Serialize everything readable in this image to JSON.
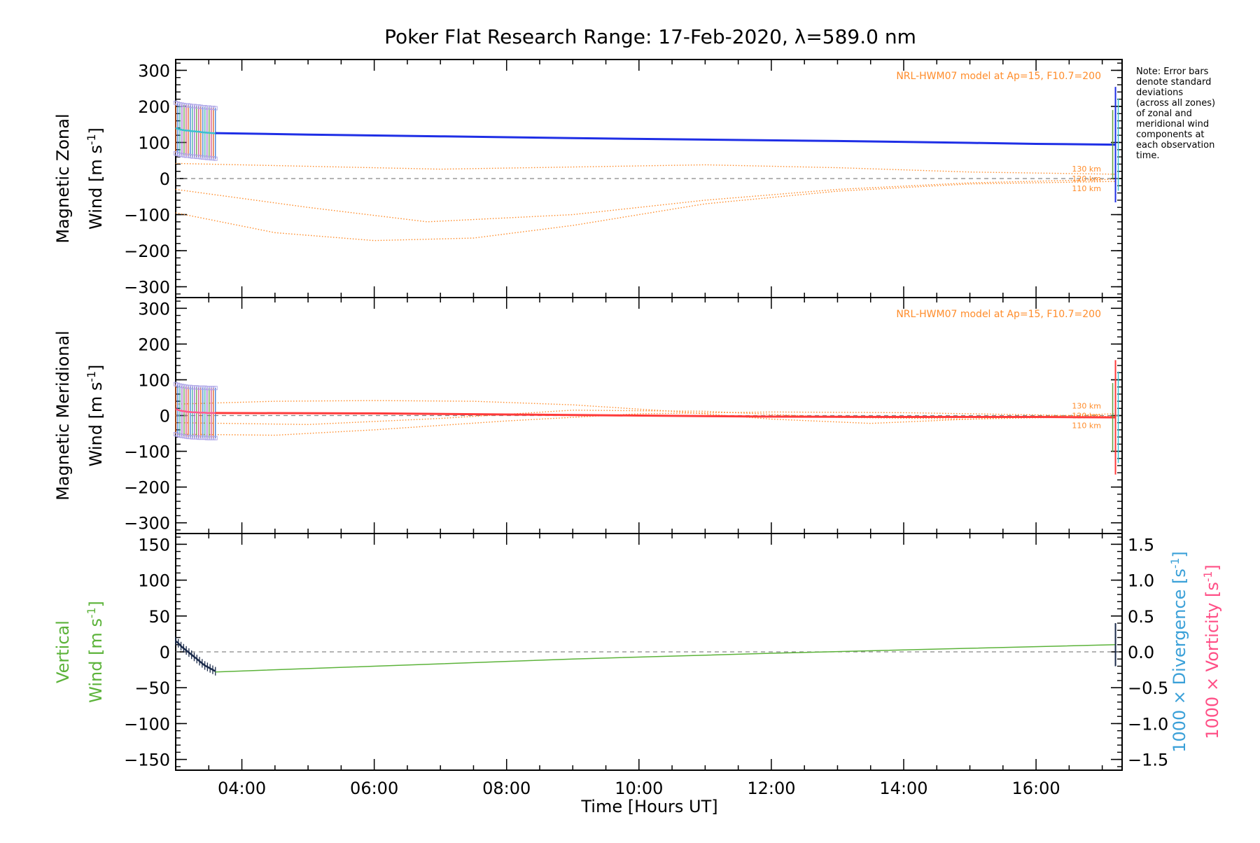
{
  "title": "Poker Flat Research Range: 17-Feb-2020, λ=589.0 nm",
  "note_lines": [
    "Note: Error bars",
    "denote standard",
    "deviations",
    "(across all zones)",
    "of zonal and",
    "meridional wind",
    "components at",
    "each observation",
    "time."
  ],
  "colors": {
    "zonal": "#1f2fe6",
    "meridional": "#ff3b3b",
    "vertical": "#5cb33a",
    "model": "#ff8c2a",
    "divergence": "#3aa0d8",
    "vorticity": "#ff4f86"
  },
  "chart_data": [
    {
      "type": "line",
      "ylabel_line1": "Magnetic Zonal",
      "ylabel_line2_prefix": "Wind [m s",
      "ylabel_sup": "-1",
      "ylabel_suffix": "]",
      "model_label": "NRL-HWM07 model at Ap=15, F10.7=200",
      "ylim": [
        -330,
        330
      ],
      "yticks": [
        -300,
        -200,
        -100,
        0,
        100,
        200,
        300
      ],
      "ytick_labels": [
        "−300",
        "−200",
        "−100",
        "0",
        "100",
        "200",
        "300"
      ],
      "xlim": [
        3.0,
        17.3
      ],
      "series": [
        {
          "kind": "obs",
          "x": [
            3.6,
            5.0,
            7.0,
            9.0,
            11.0,
            13.0,
            15.0,
            16.0,
            17.2
          ],
          "y": [
            126,
            122,
            117,
            112,
            108,
            104,
            99,
            96,
            94
          ]
        }
      ],
      "early_values": [
        140,
        138,
        136,
        135,
        134,
        133,
        133,
        132,
        131,
        131,
        130,
        130,
        129,
        128,
        128,
        127,
        127,
        126,
        126,
        125
      ],
      "model_curves": [
        {
          "name": "130 km",
          "x": [
            3.0,
            5.0,
            7.0,
            9.0,
            11.0,
            13.0,
            15.0,
            17.2
          ],
          "y": [
            42,
            34,
            26,
            32,
            38,
            30,
            18,
            12
          ]
        },
        {
          "name": "120 km",
          "x": [
            3.0,
            5.0,
            6.8,
            9.0,
            11.0,
            13.0,
            15.0,
            17.2
          ],
          "y": [
            -30,
            -80,
            -120,
            -100,
            -60,
            -30,
            -12,
            -2
          ]
        },
        {
          "name": "110 km",
          "x": [
            3.0,
            4.5,
            6.0,
            7.5,
            9.0,
            11.0,
            13.0,
            15.0,
            17.2
          ],
          "y": [
            -95,
            -150,
            -172,
            -165,
            -130,
            -70,
            -35,
            -15,
            -8
          ]
        }
      ]
    },
    {
      "type": "line",
      "ylabel_line1": "Magnetic Meridional",
      "ylabel_line2_prefix": "Wind [m s",
      "ylabel_sup": "-1",
      "ylabel_suffix": "]",
      "model_label": "NRL-HWM07 model at Ap=15, F10.7=200",
      "ylim": [
        -330,
        330
      ],
      "yticks": [
        -300,
        -200,
        -100,
        0,
        100,
        200,
        300
      ],
      "ytick_labels": [
        "−300",
        "−200",
        "−100",
        "0",
        "100",
        "200",
        "300"
      ],
      "xlim": [
        3.0,
        17.3
      ],
      "series": [
        {
          "kind": "obs",
          "x": [
            3.6,
            6.0,
            8.0,
            10.0,
            12.0,
            14.0,
            16.0,
            17.2
          ],
          "y": [
            7,
            6,
            3,
            0,
            -3,
            -4,
            -4,
            -5
          ]
        }
      ],
      "early_values": [
        18,
        16,
        14,
        13,
        12,
        11,
        10,
        10,
        9,
        9,
        9,
        8,
        8,
        8,
        8,
        7,
        7,
        7,
        7,
        7
      ],
      "model_curves": [
        {
          "name": "130 km",
          "x": [
            3.0,
            4.5,
            6.0,
            7.5,
            9.0,
            10.5,
            12.0,
            13.5,
            15.0,
            17.2
          ],
          "y": [
            32,
            40,
            42,
            40,
            30,
            12,
            -10,
            -22,
            -10,
            5
          ]
        },
        {
          "name": "120 km",
          "x": [
            3.0,
            5.0,
            7.0,
            9.0,
            11.0,
            13.0,
            15.0,
            17.2
          ],
          "y": [
            -20,
            -25,
            -8,
            15,
            12,
            -5,
            -10,
            -2
          ]
        },
        {
          "name": "110 km",
          "x": [
            3.0,
            4.5,
            6.0,
            8.0,
            10.0,
            12.0,
            14.0,
            16.0,
            17.2
          ],
          "y": [
            -52,
            -55,
            -40,
            -15,
            5,
            10,
            8,
            2,
            -3
          ]
        }
      ]
    },
    {
      "type": "line",
      "ylabel_line1": "Vertical",
      "ylabel_line2_prefix": "Wind [m s",
      "ylabel_sup": "-1",
      "ylabel_suffix": "]",
      "ylim": [
        -165,
        165
      ],
      "yticks": [
        -150,
        -100,
        -50,
        0,
        50,
        100,
        150
      ],
      "ytick_labels": [
        "−150",
        "−100",
        "−50",
        "0",
        "50",
        "100",
        "150"
      ],
      "right_axis": {
        "ylim": [
          -1.65,
          1.65
        ],
        "yticks": [
          -1.5,
          -1.0,
          -0.5,
          0.0,
          0.5,
          1.0,
          1.5
        ],
        "ytick_labels": [
          "−1.5",
          "−1.0",
          "−0.5",
          "0.0",
          "0.5",
          "1.0",
          "1.5"
        ],
        "label_divergence": "1000 × Divergence [s",
        "label_vorticity": "1000 × Vorticity [s",
        "sup": "-1",
        "suffix": "]"
      },
      "xlim": [
        3.0,
        17.3
      ],
      "series": [
        {
          "kind": "obs",
          "x": [
            3.6,
            6.0,
            9.0,
            12.0,
            15.0,
            17.2
          ],
          "y": [
            -28,
            -20,
            -10,
            -2,
            5,
            10
          ]
        }
      ],
      "early_values": [
        15,
        12,
        8,
        5,
        2,
        -1,
        -4,
        -7,
        -10,
        -13,
        -16,
        -19,
        -21,
        -23,
        -25,
        -27
      ]
    }
  ],
  "xaxis": {
    "label": "Time [Hours UT]",
    "ticks": [
      4,
      6,
      8,
      10,
      12,
      14,
      16
    ],
    "tick_labels": [
      "04:00",
      "06:00",
      "08:00",
      "10:00",
      "12:00",
      "14:00",
      "16:00"
    ]
  },
  "model_altitude_labels": [
    "130 km",
    "120 km",
    "110 km"
  ]
}
